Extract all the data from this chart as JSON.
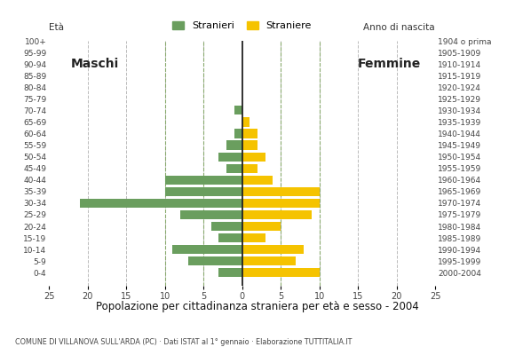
{
  "age_groups": [
    "0-4",
    "5-9",
    "10-14",
    "15-19",
    "20-24",
    "25-29",
    "30-34",
    "35-39",
    "40-44",
    "45-49",
    "50-54",
    "55-59",
    "60-64",
    "65-69",
    "70-74",
    "75-79",
    "80-84",
    "85-89",
    "90-94",
    "95-99",
    "100+"
  ],
  "birth_years": [
    "2000-2004",
    "1995-1999",
    "1990-1994",
    "1985-1989",
    "1980-1984",
    "1975-1979",
    "1970-1974",
    "1965-1969",
    "1960-1964",
    "1955-1959",
    "1950-1954",
    "1945-1949",
    "1940-1944",
    "1935-1939",
    "1930-1934",
    "1925-1929",
    "1920-1924",
    "1915-1919",
    "1910-1914",
    "1905-1909",
    "1904 o prima"
  ],
  "males": [
    3,
    7,
    9,
    3,
    4,
    8,
    21,
    10,
    10,
    2,
    3,
    2,
    1,
    0,
    1,
    0,
    0,
    0,
    0,
    0,
    0
  ],
  "females": [
    10,
    7,
    8,
    3,
    5,
    9,
    10,
    10,
    4,
    2,
    3,
    2,
    2,
    1,
    0,
    0,
    0,
    0,
    0,
    0,
    0
  ],
  "male_color": "#6a9e5e",
  "female_color": "#f5c300",
  "title": "Popolazione per cittadinanza straniera per età e sesso - 2004",
  "subtitle": "COMUNE DI VILLANOVA SULL'ARDA (PC) · Dati ISTAT al 1° gennaio · Elaborazione TUTTITALIA.IT",
  "legend_male": "Stranieri",
  "legend_female": "Straniere",
  "label_eta": "Età",
  "label_anno": "Anno di nascita",
  "label_maschi": "Maschi",
  "label_femmine": "Femmine",
  "bg_color": "#ffffff",
  "grid_color": "#bbbbbb",
  "dashed_green_color": "#8aab6e",
  "center_line_color": "#222222"
}
